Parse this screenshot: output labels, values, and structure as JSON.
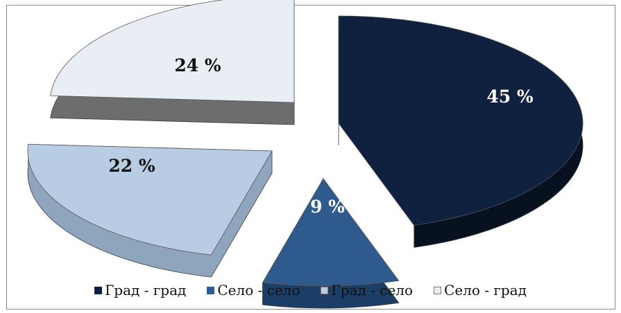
{
  "chart_data": {
    "type": "pie",
    "style": "3d-exploded",
    "slices": [
      {
        "label": "Град - град",
        "value": 45,
        "value_label": "45 %",
        "color": "#0f213f",
        "side_color": "#07111f"
      },
      {
        "label": "Село - село",
        "value": 9,
        "value_label": "9 %",
        "color": "#2e5a8e",
        "side_color": "#1c3d66"
      },
      {
        "label": "Град - село",
        "value": 22,
        "value_label": "22 %",
        "color": "#b8cce4",
        "side_color": "#8fa4bd"
      },
      {
        "label": "Село - град",
        "value": 24,
        "value_label": "24 %",
        "color": "#e9edf4",
        "side_color": "#6d6d6d"
      }
    ],
    "legend_position": "bottom"
  }
}
